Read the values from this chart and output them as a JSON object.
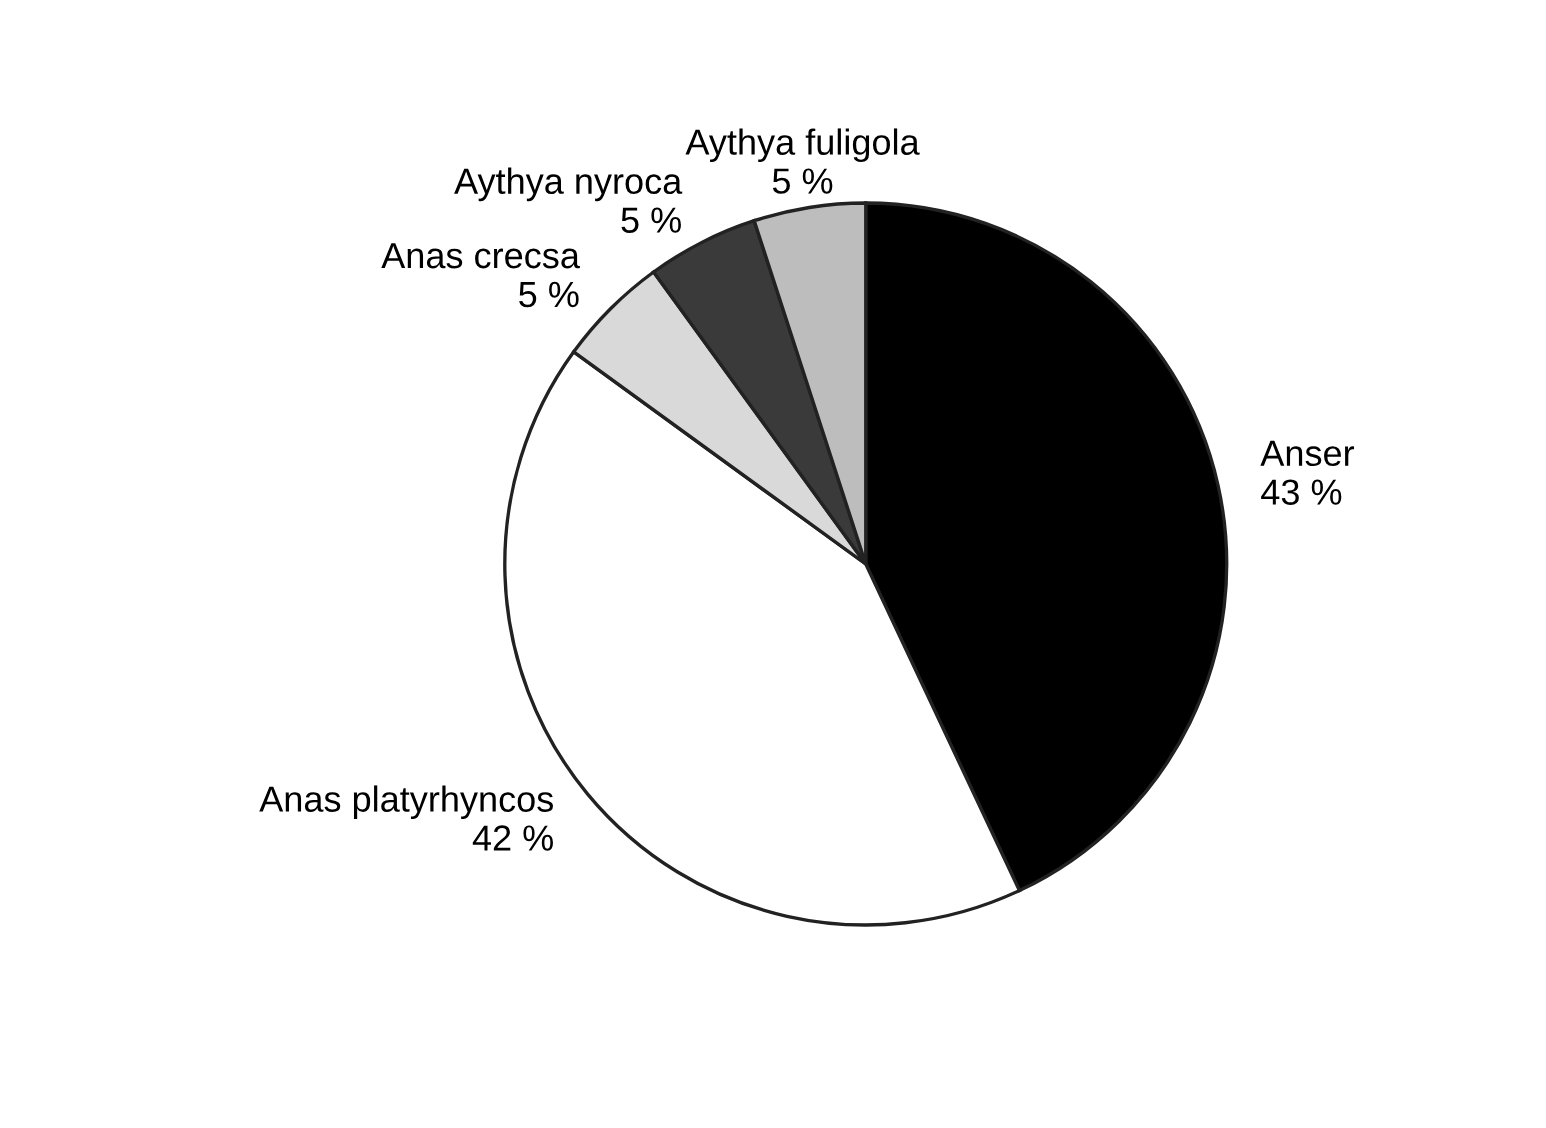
{
  "chart_data": {
    "type": "pie",
    "categories": [
      "Anser",
      "Anas platyrhyncos",
      "Anas crecsa",
      "Aythya nyroca",
      "Aythya fuligola"
    ],
    "values": [
      43,
      42,
      5,
      5,
      5
    ],
    "value_labels": [
      "43 %",
      "42 %",
      "5 %",
      "5 %",
      "5 %"
    ],
    "colors": [
      "#000000",
      "#ffffff",
      "#d9d9d9",
      "#3a3a3a",
      "#bdbdbd"
    ],
    "legend": false
  }
}
